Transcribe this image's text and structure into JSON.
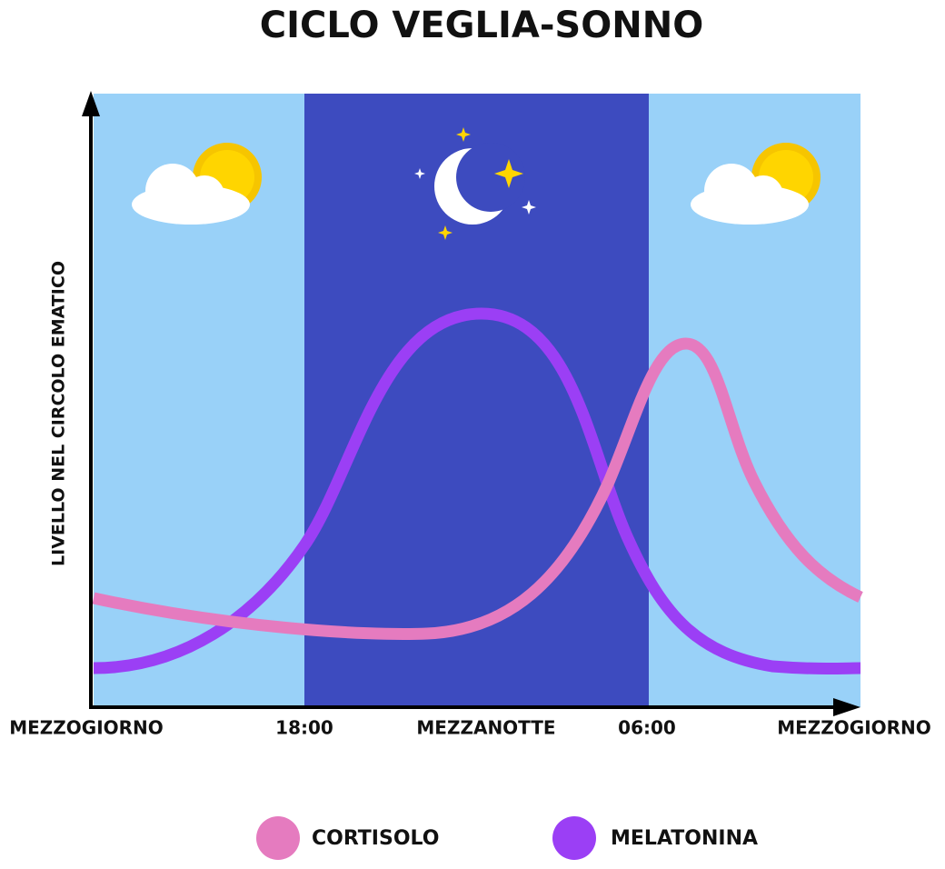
{
  "title": "CICLO VEGLIA-SONNO",
  "y_axis_label": "LIVELLO NEL CIRCOLO EMATICO",
  "x_labels": [
    "MEZZOGIORNO",
    "18:00",
    "MEZZANOTTE",
    "06:00",
    "MEZZOGIORNO"
  ],
  "legend": [
    "CORTISOLO",
    "MELATONINA"
  ]
}
